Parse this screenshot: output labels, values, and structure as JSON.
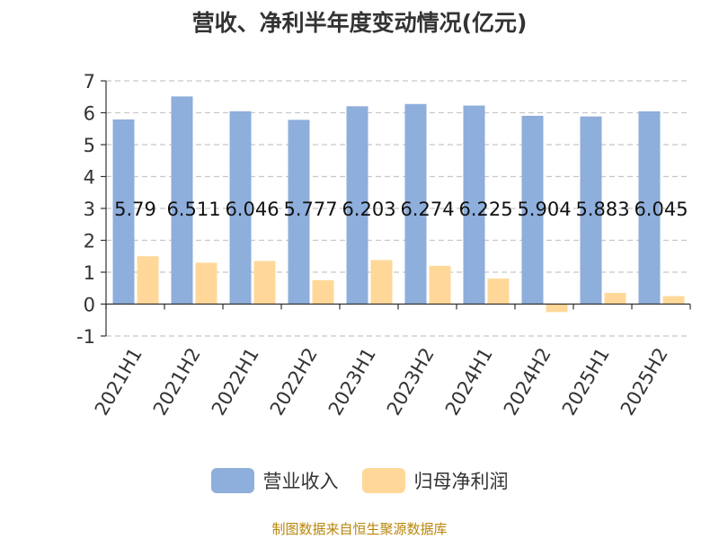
{
  "chart_data": {
    "type": "bar",
    "title": "营收、净利半年度变动情况(亿元)",
    "categories": [
      "2021H1",
      "2021H2",
      "2022H1",
      "2022H2",
      "2023H1",
      "2023H2",
      "2024H1",
      "2024H2",
      "2025H1",
      "2025H2"
    ],
    "series": [
      {
        "name": "营业收入",
        "color": "#8eaedb",
        "values": [
          5.79,
          6.511,
          6.046,
          5.777,
          6.203,
          6.274,
          6.225,
          5.904,
          5.883,
          6.045
        ],
        "labels": [
          "5.79",
          "6.511",
          "6.046",
          "5.777",
          "6.203",
          "6.274",
          "6.225",
          "5.904",
          "5.883",
          "6.045"
        ]
      },
      {
        "name": "归母净利润",
        "color": "#ffd899",
        "values": [
          1.5,
          1.3,
          1.35,
          0.75,
          1.38,
          1.2,
          0.8,
          -0.25,
          0.35,
          0.25
        ]
      }
    ],
    "yticks": [
      "-1",
      "0",
      "1",
      "2",
      "3",
      "4",
      "5",
      "6",
      "7"
    ],
    "ylim": [
      -1,
      7
    ],
    "grid": true,
    "legend_position": "bottom"
  },
  "source_note": "制图数据来自恒生聚源数据库"
}
